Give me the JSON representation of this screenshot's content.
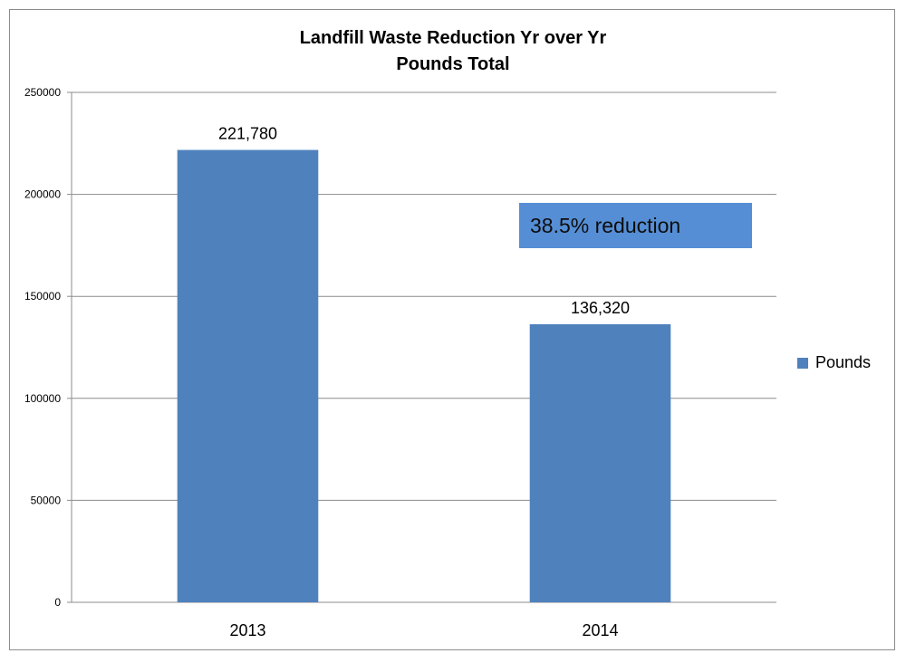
{
  "chart_data": {
    "type": "bar",
    "title_line1": "Landfill Waste Reduction Yr over Yr",
    "title_line2": "Pounds Total",
    "categories": [
      "2013",
      "2014"
    ],
    "series": [
      {
        "name": "Pounds",
        "values": [
          221780,
          136320
        ],
        "data_labels": [
          "221,780",
          "136,320"
        ]
      }
    ],
    "ylim": [
      0,
      250000
    ],
    "yticks": [
      0,
      50000,
      100000,
      150000,
      200000,
      250000
    ],
    "grid": true,
    "legend_position": "right",
    "annotation": "38.5% reduction",
    "bar_color": "#4f81bd",
    "annotation_color": "#558ed5"
  }
}
